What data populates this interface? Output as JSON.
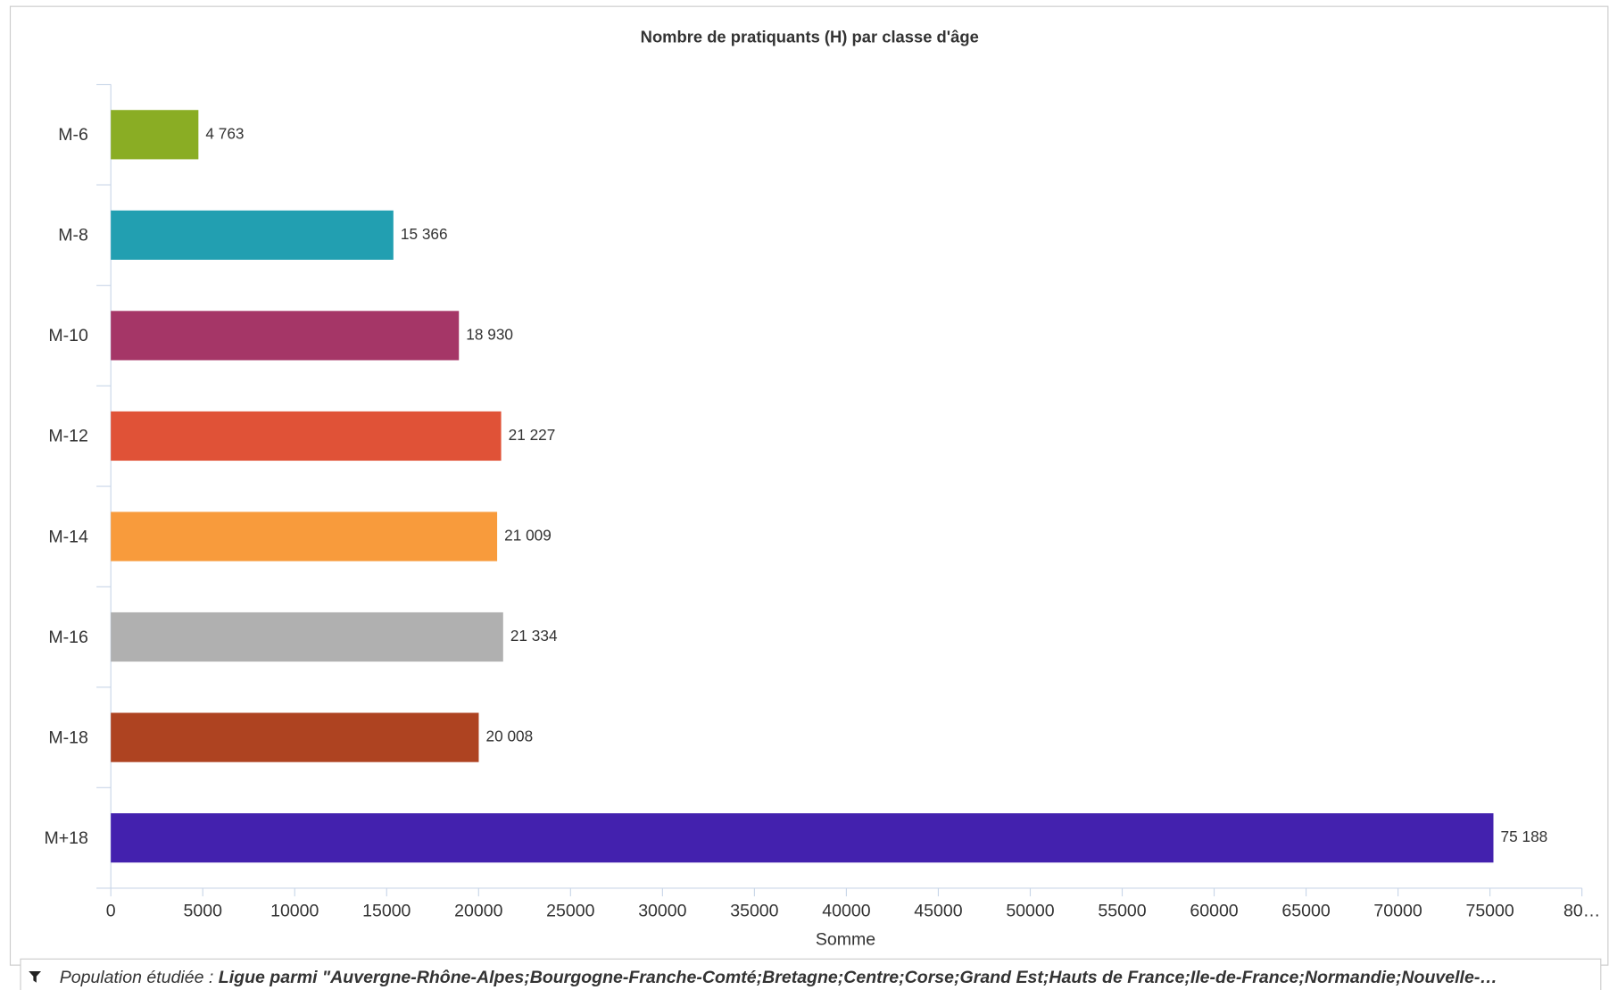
{
  "chart_data": {
    "type": "bar",
    "orientation": "horizontal",
    "title": "Nombre de pratiquants (H) par classe d'âge",
    "categories": [
      "M-6",
      "M-8",
      "M-10",
      "M-12",
      "M-14",
      "M-16",
      "M-18",
      "M+18"
    ],
    "values": [
      4763,
      15366,
      18930,
      21227,
      21009,
      21334,
      20008,
      75188
    ],
    "value_labels": [
      "4 763",
      "15 366",
      "18 930",
      "21 227",
      "21 009",
      "21 334",
      "20 008",
      "75 188"
    ],
    "colors": [
      "#8aad24",
      "#229fb1",
      "#a53667",
      "#e05237",
      "#f89b3c",
      "#b0b0b0",
      "#ae4321",
      "#4321ae"
    ],
    "xlabel": "Somme",
    "xlim": [
      0,
      80000
    ],
    "xticks": [
      0,
      5000,
      10000,
      15000,
      20000,
      25000,
      30000,
      35000,
      40000,
      45000,
      50000,
      55000,
      60000,
      65000,
      70000,
      75000,
      {
        "value": 80000,
        "label": "80…"
      }
    ]
  },
  "footer": {
    "label": "Population étudiée :",
    "value": "Ligue parmi \"Auvergne-Rhône-Alpes;Bourgogne-Franche-Comté;Bretagne;Centre;Corse;Grand Est;Hauts de France;Ile-de-France;Normandie;Nouvelle-…"
  }
}
